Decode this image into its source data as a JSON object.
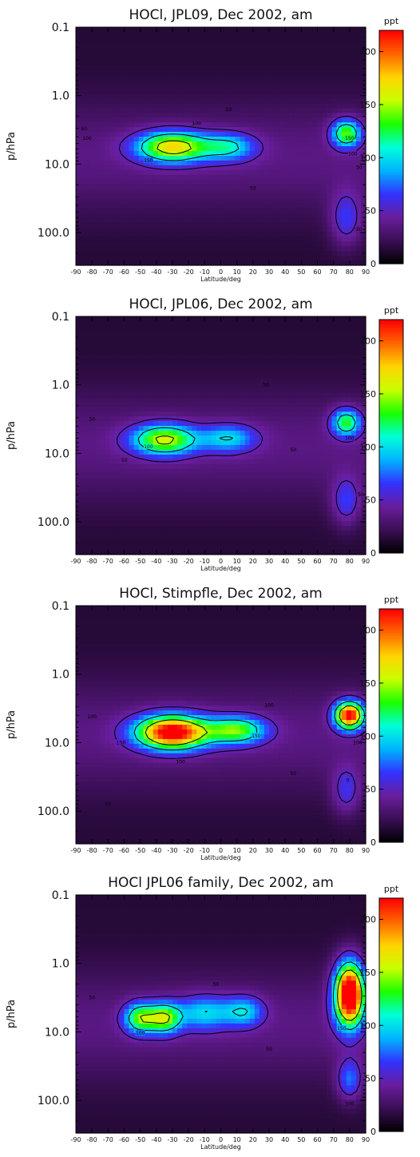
{
  "shared": {
    "ylabel": "p/hPa",
    "xlabel": "Latitude/deg",
    "colorbar_unit": "ppt",
    "yticks": [
      "0.1",
      "1.0",
      "10.0",
      "100.0"
    ],
    "xticks": [
      "-90",
      "-80",
      "-70",
      "-60",
      "-50",
      "-40",
      "-30",
      "-20",
      "-10",
      "0",
      "10",
      "20",
      "30",
      "40",
      "50",
      "60",
      "70",
      "80",
      "90"
    ],
    "colorbar_ticks": [
      "0",
      "50",
      "100",
      "150",
      "200"
    ],
    "contour_levels": [
      50,
      100,
      150
    ],
    "colorbar_colors": [
      "#000000",
      "#3a0f55",
      "#6a1d9c",
      "#3232ff",
      "#00b4ff",
      "#00ffd8",
      "#1aff00",
      "#c8ff00",
      "#ffd400",
      "#ff6600",
      "#ff0000"
    ]
  },
  "chart_data": [
    {
      "type": "heatmap",
      "title": "HOCl, JPL09, Dec 2002, am",
      "xlim": [
        -90,
        90
      ],
      "ylim_hPa": [
        0.1,
        300
      ],
      "ylog": true,
      "clim": [
        0,
        220
      ],
      "grid": false,
      "blobs": [
        {
          "lat": -30,
          "logp": 0.75,
          "slat": 22,
          "slp": 0.22,
          "amp": 140
        },
        {
          "lat": 5,
          "logp": 0.75,
          "slat": 17,
          "slp": 0.2,
          "amp": 70
        },
        {
          "lat": 78,
          "logp": 0.55,
          "slat": 9,
          "slp": 0.2,
          "amp": 110
        },
        {
          "lat": 78,
          "logp": 1.8,
          "slat": 10,
          "slp": 0.4,
          "amp": 45
        }
      ],
      "contour_labels": [
        {
          "text": "50",
          "lat": -85,
          "logp": 0.48
        },
        {
          "text": "50",
          "lat": 5,
          "logp": 0.2
        },
        {
          "text": "100",
          "lat": -83,
          "logp": 0.62
        },
        {
          "text": "100",
          "lat": -15,
          "logp": 0.4
        },
        {
          "text": "150",
          "lat": -45,
          "logp": 0.95
        },
        {
          "text": "150",
          "lat": 80,
          "logp": 0.62
        },
        {
          "text": "100",
          "lat": 82,
          "logp": 0.85
        },
        {
          "text": "50",
          "lat": 86,
          "logp": 1.05
        },
        {
          "text": "50",
          "lat": 20,
          "logp": 1.35
        },
        {
          "text": "50",
          "lat": 86,
          "logp": 1.95
        }
      ]
    },
    {
      "type": "heatmap",
      "title": "HOCl, JPL06, Dec 2002, am",
      "xlim": [
        -90,
        90
      ],
      "ylim_hPa": [
        0.1,
        300
      ],
      "ylog": true,
      "clim": [
        0,
        220
      ],
      "grid": false,
      "blobs": [
        {
          "lat": -35,
          "logp": 0.8,
          "slat": 20,
          "slp": 0.22,
          "amp": 125
        },
        {
          "lat": 5,
          "logp": 0.78,
          "slat": 17,
          "slp": 0.2,
          "amp": 65
        },
        {
          "lat": 78,
          "logp": 0.55,
          "slat": 9,
          "slp": 0.2,
          "amp": 100
        },
        {
          "lat": 78,
          "logp": 1.7,
          "slat": 9,
          "slp": 0.35,
          "amp": 45
        }
      ],
      "contour_labels": [
        {
          "text": "50",
          "lat": -80,
          "logp": 0.5
        },
        {
          "text": "50",
          "lat": 28,
          "logp": 0.0
        },
        {
          "text": "100",
          "lat": -45,
          "logp": 0.9
        },
        {
          "text": "50",
          "lat": -60,
          "logp": 1.1
        },
        {
          "text": "50",
          "lat": 45,
          "logp": 0.95
        },
        {
          "text": "100",
          "lat": 80,
          "logp": 0.78
        },
        {
          "text": "50",
          "lat": 87,
          "logp": 1.6
        }
      ]
    },
    {
      "type": "heatmap",
      "title": "HOCl, Stimpfle, Dec 2002, am",
      "xlim": [
        -90,
        90
      ],
      "ylim_hPa": [
        0.1,
        300
      ],
      "ylog": true,
      "clim": [
        0,
        220
      ],
      "grid": false,
      "blobs": [
        {
          "lat": -30,
          "logp": 0.85,
          "slat": 22,
          "slp": 0.24,
          "amp": 205
        },
        {
          "lat": 10,
          "logp": 0.82,
          "slat": 18,
          "slp": 0.2,
          "amp": 105
        },
        {
          "lat": 80,
          "logp": 0.6,
          "slat": 9,
          "slp": 0.2,
          "amp": 195
        },
        {
          "lat": 78,
          "logp": 1.7,
          "slat": 9,
          "slp": 0.35,
          "amp": 40
        }
      ],
      "contour_labels": [
        {
          "text": "100",
          "lat": -80,
          "logp": 0.62
        },
        {
          "text": "100",
          "lat": 30,
          "logp": 0.45
        },
        {
          "text": "150",
          "lat": -62,
          "logp": 1.0
        },
        {
          "text": "150",
          "lat": 22,
          "logp": 0.9
        },
        {
          "text": "100",
          "lat": -25,
          "logp": 1.28
        },
        {
          "text": "50",
          "lat": 45,
          "logp": 1.45
        },
        {
          "text": "50",
          "lat": -70,
          "logp": 1.9
        },
        {
          "text": "100",
          "lat": 85,
          "logp": 1.0
        },
        {
          "text": "0",
          "lat": 79,
          "logp": 1.55
        }
      ]
    },
    {
      "type": "heatmap",
      "title": "HOCl JPL06 family, Dec 2002, am",
      "xlim": [
        -90,
        90
      ],
      "ylim_hPa": [
        0.1,
        300
      ],
      "ylog": true,
      "clim": [
        0,
        220
      ],
      "grid": false,
      "blobs": [
        {
          "lat": -50,
          "logp": 0.8,
          "slat": 10,
          "slp": 0.22,
          "amp": 105
        },
        {
          "lat": -35,
          "logp": 0.8,
          "slat": 10,
          "slp": 0.22,
          "amp": 110
        },
        {
          "lat": -10,
          "logp": 0.72,
          "slat": 18,
          "slp": 0.25,
          "amp": 65
        },
        {
          "lat": 15,
          "logp": 0.7,
          "slat": 12,
          "slp": 0.22,
          "amp": 60
        },
        {
          "lat": 80,
          "logp": 0.45,
          "slat": 9,
          "slp": 0.45,
          "amp": 240
        },
        {
          "lat": 80,
          "logp": 1.7,
          "slat": 8,
          "slp": 0.3,
          "amp": 55
        }
      ],
      "contour_labels": [
        {
          "text": "50",
          "lat": -80,
          "logp": 0.5
        },
        {
          "text": "50",
          "lat": -3,
          "logp": 0.3
        },
        {
          "text": "100",
          "lat": -50,
          "logp": 1.02
        },
        {
          "text": "50",
          "lat": 30,
          "logp": 1.25
        },
        {
          "text": "150",
          "lat": 75,
          "logp": 0.95
        },
        {
          "text": "100",
          "lat": 80,
          "logp": 2.05
        }
      ]
    }
  ]
}
